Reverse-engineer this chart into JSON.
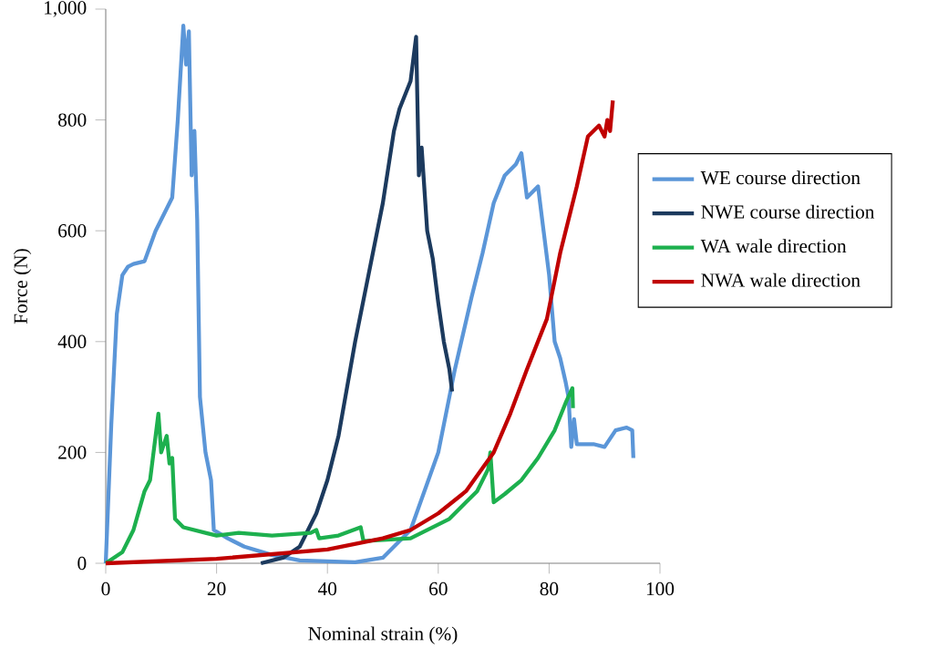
{
  "chart_data": {
    "type": "line",
    "xlabel": "Nominal strain (%)",
    "ylabel": "Force (N)",
    "xlim": [
      0,
      100
    ],
    "xticks": [
      0,
      20,
      40,
      60,
      80,
      100
    ],
    "ylim": [
      0,
      1000
    ],
    "yticks": [
      0,
      200,
      400,
      600,
      800,
      {
        "value": 1000,
        "label": "1,000"
      }
    ],
    "grid": false,
    "legend": "right",
    "marker": "none",
    "line_style": "solid",
    "series": [
      {
        "name": "WE course direction",
        "color": "#5b96d8",
        "x": [
          0,
          1,
          2,
          3,
          4,
          5,
          7,
          9,
          12,
          13,
          14,
          14.5,
          15,
          15.5,
          16,
          16.5,
          17,
          18,
          19,
          19.5,
          22,
          25,
          30,
          35,
          45,
          50,
          55,
          60,
          63,
          66,
          68,
          70,
          72,
          74,
          75,
          76,
          78,
          79,
          80,
          81,
          82,
          83,
          83.5,
          84,
          84.5,
          85,
          88,
          90,
          92,
          94,
          95,
          95.2
        ],
        "values": [
          0,
          250,
          450,
          520,
          535,
          540,
          545,
          600,
          660,
          800,
          970,
          900,
          960,
          700,
          780,
          620,
          300,
          200,
          150,
          60,
          45,
          30,
          15,
          5,
          2,
          10,
          60,
          200,
          350,
          480,
          560,
          650,
          700,
          720,
          740,
          660,
          680,
          600,
          520,
          400,
          370,
          326,
          300,
          210,
          260,
          215,
          215,
          210,
          240,
          245,
          240,
          190
        ]
      },
      {
        "name": "NWE course direction",
        "color": "#1c3a5e",
        "x": [
          28,
          32,
          35,
          38,
          40,
          42,
          45,
          48,
          50,
          52,
          53,
          55,
          56,
          56.5,
          57,
          58,
          59,
          60,
          61,
          62,
          62.5
        ],
        "values": [
          0,
          10,
          30,
          90,
          150,
          230,
          400,
          550,
          650,
          780,
          820,
          870,
          950,
          700,
          750,
          600,
          550,
          470,
          400,
          350,
          310
        ]
      },
      {
        "name": "WA wale direction",
        "color": "#1db04e",
        "x": [
          0,
          3,
          5,
          7,
          8,
          9,
          9.5,
          10,
          11,
          11.5,
          12,
          12.5,
          14,
          18,
          20,
          24,
          30,
          37,
          38,
          38.5,
          42,
          46,
          46.5,
          55,
          62,
          65,
          67,
          69,
          69.4,
          70,
          72,
          75,
          78,
          81,
          83,
          84.2,
          84.3
        ],
        "values": [
          0,
          20,
          60,
          130,
          150,
          230,
          270,
          200,
          230,
          180,
          190,
          80,
          65,
          55,
          50,
          55,
          50,
          55,
          60,
          45,
          50,
          65,
          40,
          45,
          80,
          110,
          130,
          170,
          200,
          110,
          125,
          150,
          190,
          240,
          290,
          316,
          280
        ]
      },
      {
        "name": "NWA wale direction",
        "color": "#c00000",
        "x": [
          0,
          20,
          40,
          50,
          55,
          60,
          65,
          70,
          73,
          76,
          79.6,
          82,
          85,
          87,
          88,
          89,
          90,
          90.5,
          91,
          91.5
        ],
        "values": [
          0,
          8,
          25,
          45,
          60,
          90,
          130,
          200,
          270,
          350,
          441,
          560,
          680,
          770,
          780,
          790,
          770,
          800,
          780,
          835
        ]
      }
    ]
  }
}
